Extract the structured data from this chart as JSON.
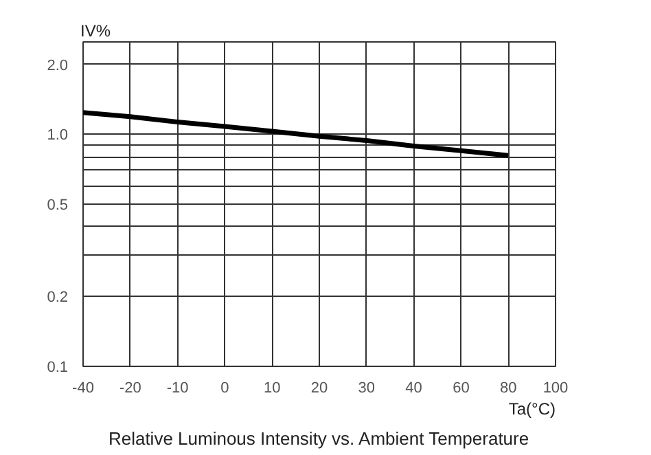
{
  "chart_data": {
    "type": "line",
    "title": "Relative Luminous Intensity vs. Ambient Temperature",
    "xlabel": "Ta(°C)",
    "ylabel": "IV%",
    "categories": [
      "-40",
      "-20",
      "-10",
      "0",
      "10",
      "20",
      "30",
      "40",
      "60",
      "80",
      "100"
    ],
    "series": [
      {
        "color": "#000000",
        "values": [
          1.24,
          1.19,
          1.13,
          1.08,
          1.03,
          0.98,
          0.94,
          0.89,
          0.85,
          0.81,
          null
        ]
      }
    ],
    "log": true,
    "ylim": [
      0.1,
      2.5
    ],
    "yticks": [
      0.1,
      0.2,
      {
        "value": 0.3,
        "label": null
      },
      {
        "value": 0.4,
        "label": null
      },
      0.5,
      {
        "value": 0.6,
        "label": null
      },
      {
        "value": 0.7,
        "label": null
      },
      {
        "value": 0.8,
        "label": null
      },
      {
        "value": 0.9,
        "label": null
      },
      {
        "value": 1.0,
        "label": "1.0"
      },
      {
        "value": 2.0,
        "label": "2.0"
      }
    ],
    "grid": true,
    "marker": "none",
    "line_style": "solid"
  }
}
